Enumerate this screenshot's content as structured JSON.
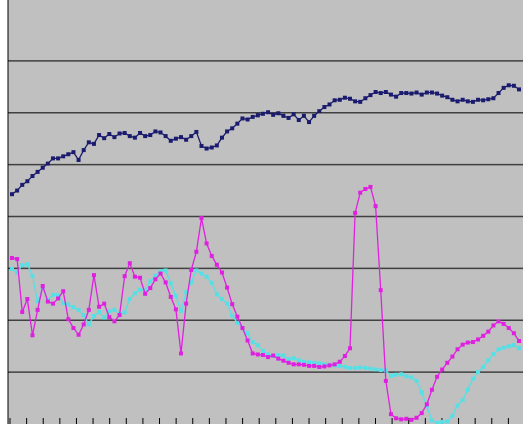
{
  "chart_data": {
    "type": "line",
    "title": "",
    "xlabel": "",
    "ylabel": "",
    "ylim": [
      0,
      8
    ],
    "grid": true,
    "colors": {
      "plot_background": "#c0c0c0",
      "gridline": "#404040",
      "axis": "#000000"
    },
    "x": [
      1,
      2,
      3,
      4,
      5,
      6,
      7,
      8,
      9,
      10,
      11,
      12,
      13,
      14,
      15,
      16,
      17,
      18,
      19,
      20,
      21,
      22,
      23,
      24,
      25,
      26,
      27,
      28,
      29,
      30,
      31,
      32,
      33,
      34,
      35,
      36,
      37,
      38,
      39,
      40,
      41,
      42,
      43,
      44,
      45,
      46,
      47,
      48,
      49,
      50,
      51,
      52,
      53,
      54,
      55,
      56,
      57,
      58,
      59,
      60,
      61,
      62,
      63,
      64,
      65,
      66,
      67,
      68,
      69,
      70,
      71,
      72,
      73,
      74,
      75,
      76,
      77,
      78,
      79,
      80,
      81,
      82,
      83,
      84,
      85,
      86,
      87,
      88,
      89,
      90,
      91,
      92,
      93,
      94,
      95,
      96,
      97,
      98,
      99,
      100
    ],
    "series": [
      {
        "color": "#1a1a6e",
        "values": [
          4.43,
          4.5,
          4.61,
          4.68,
          4.78,
          4.86,
          4.94,
          5.02,
          5.12,
          5.12,
          5.16,
          5.2,
          5.24,
          5.09,
          5.28,
          5.43,
          5.4,
          5.57,
          5.51,
          5.59,
          5.53,
          5.6,
          5.61,
          5.55,
          5.52,
          5.61,
          5.55,
          5.57,
          5.64,
          5.62,
          5.55,
          5.46,
          5.5,
          5.53,
          5.48,
          5.55,
          5.63,
          5.36,
          5.31,
          5.33,
          5.37,
          5.52,
          5.64,
          5.7,
          5.79,
          5.89,
          5.87,
          5.92,
          5.95,
          5.98,
          6.01,
          5.96,
          5.99,
          5.94,
          5.9,
          5.97,
          5.86,
          5.94,
          5.82,
          5.94,
          6.03,
          6.11,
          6.16,
          6.24,
          6.25,
          6.29,
          6.27,
          6.22,
          6.21,
          6.28,
          6.34,
          6.4,
          6.38,
          6.4,
          6.35,
          6.31,
          6.38,
          6.38,
          6.37,
          6.39,
          6.35,
          6.39,
          6.39,
          6.37,
          6.33,
          6.3,
          6.25,
          6.22,
          6.25,
          6.22,
          6.21,
          6.25,
          6.24,
          6.26,
          6.28,
          6.38,
          6.48,
          6.53,
          6.52,
          6.45
        ]
      },
      {
        "color": "#55e0e6",
        "values": [
          2.99,
          2.92,
          3.06,
          3.08,
          2.86,
          2.36,
          2.62,
          2.39,
          2.49,
          2.48,
          2.33,
          2.3,
          2.25,
          2.2,
          2.1,
          1.92,
          2.08,
          2.16,
          2.05,
          2.17,
          2.2,
          2.12,
          2.15,
          2.41,
          2.52,
          2.59,
          2.57,
          2.75,
          2.86,
          2.95,
          2.96,
          2.71,
          2.47,
          2.18,
          2.54,
          2.73,
          2.96,
          2.9,
          2.84,
          2.72,
          2.5,
          2.41,
          2.32,
          2.09,
          1.95,
          1.85,
          1.75,
          1.58,
          1.52,
          1.41,
          1.34,
          1.31,
          1.33,
          1.32,
          1.25,
          1.27,
          1.23,
          1.2,
          1.19,
          1.18,
          1.17,
          1.15,
          1.14,
          1.13,
          1.12,
          1.1,
          1.08,
          1.08,
          1.09,
          1.08,
          1.07,
          1.05,
          1.04,
          1.03,
          0.93,
          0.95,
          0.96,
          0.92,
          0.9,
          0.83,
          0.61,
          0.34,
          0.07,
          0.02,
          0.04,
          0.05,
          0.16,
          0.36,
          0.46,
          0.66,
          0.87,
          1.0,
          1.1,
          1.23,
          1.35,
          1.44,
          1.47,
          1.5,
          1.52,
          1.46
        ]
      },
      {
        "color": "#e020e0",
        "values": [
          3.2,
          3.18,
          2.16,
          2.41,
          1.71,
          2.2,
          2.66,
          2.36,
          2.32,
          2.42,
          2.56,
          2.02,
          1.85,
          1.72,
          1.92,
          2.2,
          2.87,
          2.26,
          2.32,
          2.06,
          1.98,
          2.1,
          2.85,
          3.1,
          2.84,
          2.82,
          2.51,
          2.62,
          2.79,
          2.9,
          2.73,
          2.45,
          2.21,
          1.36,
          2.32,
          2.97,
          3.32,
          3.97,
          3.48,
          3.24,
          3.07,
          2.92,
          2.63,
          2.31,
          2.07,
          1.85,
          1.61,
          1.36,
          1.34,
          1.33,
          1.29,
          1.32,
          1.26,
          1.22,
          1.18,
          1.15,
          1.15,
          1.14,
          1.12,
          1.12,
          1.1,
          1.11,
          1.13,
          1.15,
          1.2,
          1.31,
          1.46,
          4.07,
          4.46,
          4.53,
          4.57,
          4.2,
          2.58,
          0.83,
          0.19,
          0.11,
          0.09,
          0.1,
          0.08,
          0.12,
          0.21,
          0.38,
          0.66,
          0.91,
          1.05,
          1.18,
          1.3,
          1.44,
          1.53,
          1.57,
          1.58,
          1.63,
          1.7,
          1.78,
          1.9,
          1.98,
          1.93,
          1.85,
          1.75,
          1.6
        ]
      }
    ]
  }
}
